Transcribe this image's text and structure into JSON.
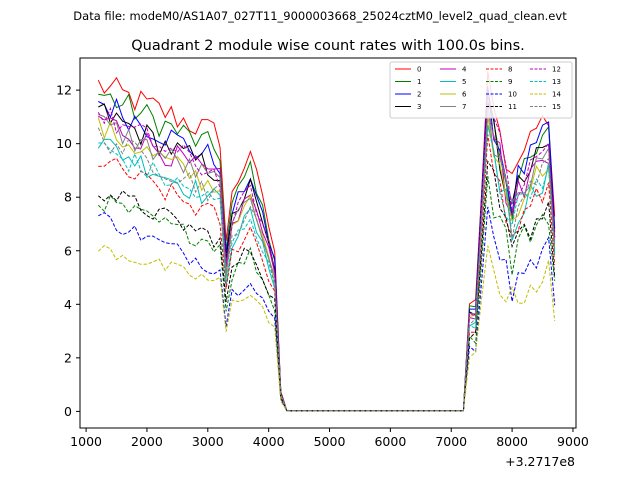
{
  "chart_data": {
    "type": "line",
    "suptitle": "Data file: modeM0/AS1A07_027T11_9000003668_25024cztM0_level2_quad_clean.evt",
    "title": "Quadrant 2 module wise count rates with 100.0s bins.",
    "xlabel": "",
    "ylabel": "",
    "x_offset_label": "+3.2717e8",
    "xlim": [
      900,
      9050
    ],
    "ylim": [
      -0.62,
      13.2
    ],
    "xticks": [
      1000,
      2000,
      3000,
      4000,
      5000,
      6000,
      7000,
      8000,
      9000
    ],
    "xtick_labels": [
      "1000",
      "2000",
      "3000",
      "4000",
      "5000",
      "6000",
      "7000",
      "8000",
      "9000"
    ],
    "yticks": [
      0,
      2,
      4,
      6,
      8,
      10,
      12
    ],
    "ytick_labels": [
      "0",
      "2",
      "4",
      "6",
      "8",
      "10",
      "12"
    ],
    "legend_position": "top-right",
    "x_start": 1200,
    "x_step": 100,
    "n_points": 76,
    "gap": [
      4300,
      7300
    ],
    "series": [
      {
        "name": "0",
        "color": "#ff0000",
        "dash": "solid",
        "a": 12.2,
        "b": 10.3,
        "c": 7.5,
        "d": 12.8,
        "e": 11.2
      },
      {
        "name": "1",
        "color": "#008000",
        "dash": "solid",
        "a": 11.9,
        "b": 9.7,
        "c": 7.2,
        "d": 12.1,
        "e": 10.3
      },
      {
        "name": "2",
        "color": "#0000ff",
        "dash": "solid",
        "a": 11.6,
        "b": 9.3,
        "c": 7.0,
        "d": 11.9,
        "e": 10.5
      },
      {
        "name": "3",
        "color": "#000000",
        "dash": "solid",
        "a": 11.2,
        "b": 8.9,
        "c": 6.8,
        "d": 11.4,
        "e": 10.0
      },
      {
        "name": "4",
        "color": "#bf00bf",
        "dash": "solid",
        "a": 11.0,
        "b": 8.6,
        "c": 6.5,
        "d": 11.6,
        "e": 9.8
      },
      {
        "name": "5",
        "color": "#00bfbf",
        "dash": "solid",
        "a": 10.1,
        "b": 7.8,
        "c": 6.0,
        "d": 10.8,
        "e": 9.0
      },
      {
        "name": "6",
        "color": "#bfbf00",
        "dash": "solid",
        "a": 10.6,
        "b": 8.3,
        "c": 6.3,
        "d": 11.0,
        "e": 9.4
      },
      {
        "name": "7",
        "color": "#808080",
        "dash": "solid",
        "a": 10.8,
        "b": 8.5,
        "c": 6.4,
        "d": 11.2,
        "e": 9.6
      },
      {
        "name": "8",
        "color": "#ff0000",
        "dash": "dashed",
        "a": 9.4,
        "b": 7.2,
        "c": 5.6,
        "d": 10.2,
        "e": 8.4
      },
      {
        "name": "9",
        "color": "#008000",
        "dash": "dashed",
        "a": 7.9,
        "b": 6.2,
        "c": 4.9,
        "d": 8.7,
        "e": 7.5
      },
      {
        "name": "10",
        "color": "#0000ff",
        "dash": "dashed",
        "a": 7.3,
        "b": 5.3,
        "c": 4.2,
        "d": 7.4,
        "e": 6.1
      },
      {
        "name": "11",
        "color": "#000000",
        "dash": "dashed",
        "a": 8.3,
        "b": 6.4,
        "c": 5.1,
        "d": 9.1,
        "e": 7.7
      },
      {
        "name": "12",
        "color": "#bf00bf",
        "dash": "dashed",
        "a": 11.1,
        "b": 8.8,
        "c": 6.7,
        "d": 12.0,
        "e": 10.0
      },
      {
        "name": "13",
        "color": "#00bfbf",
        "dash": "dashed",
        "a": 9.9,
        "b": 7.7,
        "c": 5.9,
        "d": 10.9,
        "e": 9.1
      },
      {
        "name": "14",
        "color": "#bfbf00",
        "dash": "dashed",
        "a": 6.1,
        "b": 4.8,
        "c": 3.8,
        "d": 6.1,
        "e": 5.2
      },
      {
        "name": "15",
        "color": "#808080",
        "dash": "dashed",
        "a": 10.3,
        "b": 8.1,
        "c": 6.1,
        "d": 11.1,
        "e": 9.3
      }
    ]
  }
}
